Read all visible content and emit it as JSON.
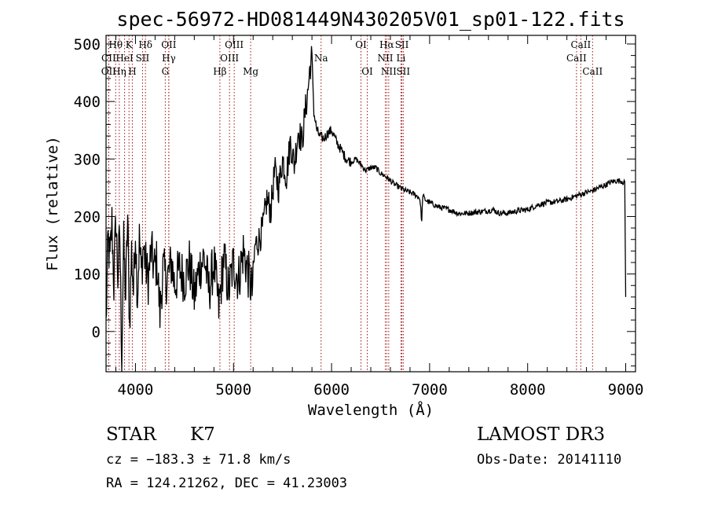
{
  "chart_data": {
    "type": "line",
    "title": "spec-56972-HD081449N430205V01_sp01-122.fits",
    "xlabel": "Wavelength (Å)",
    "ylabel": "Flux (relative)",
    "xlim": [
      3700,
      9100
    ],
    "ylim": [
      -70,
      515
    ],
    "xticks": [
      4000,
      5000,
      6000,
      7000,
      8000,
      9000
    ],
    "yticks": [
      0,
      100,
      200,
      300,
      400,
      500
    ],
    "xtick_labels": [
      "4000",
      "5000",
      "6000",
      "7000",
      "8000",
      "9000"
    ],
    "ytick_labels": [
      "0",
      "100",
      "200",
      "300",
      "400",
      "500"
    ],
    "x_minor_step": 200,
    "y_minor_step": 20,
    "series": [
      {
        "name": "spectrum",
        "x": [
          3700,
          3720,
          3740,
          3760,
          3780,
          3800,
          3820,
          3840,
          3860,
          3880,
          3900,
          3920,
          3940,
          3960,
          3980,
          4000,
          4020,
          4040,
          4060,
          4080,
          4100,
          4130,
          4160,
          4190,
          4220,
          4250,
          4280,
          4310,
          4340,
          4370,
          4400,
          4450,
          4500,
          4550,
          4600,
          4650,
          4700,
          4750,
          4800,
          4850,
          4900,
          4950,
          5000,
          5050,
          5100,
          5150,
          5190,
          5220,
          5260,
          5300,
          5340,
          5380,
          5420,
          5460,
          5500,
          5540,
          5580,
          5620,
          5660,
          5700,
          5730,
          5760,
          5780,
          5800,
          5820,
          5850,
          5880,
          5920,
          5960,
          6000,
          6050,
          6100,
          6150,
          6200,
          6250,
          6300,
          6350,
          6400,
          6450,
          6500,
          6550,
          6600,
          6650,
          6700,
          6750,
          6800,
          6850,
          6900,
          6920,
          6930,
          6950,
          7000,
          7100,
          7200,
          7300,
          7400,
          7500,
          7600,
          7650,
          7700,
          7800,
          7900,
          8000,
          8100,
          8200,
          8300,
          8400,
          8500,
          8600,
          8650,
          8700,
          8750,
          8800,
          8850,
          8900,
          8950,
          8990,
          9000
        ],
        "y": [
          10,
          160,
          120,
          190,
          80,
          200,
          95,
          170,
          -40,
          150,
          60,
          200,
          10,
          140,
          70,
          180,
          60,
          160,
          100,
          150,
          120,
          90,
          140,
          110,
          120,
          30,
          110,
          90,
          100,
          120,
          80,
          110,
          90,
          120,
          60,
          110,
          130,
          70,
          120,
          40,
          130,
          70,
          120,
          90,
          140,
          100,
          70,
          150,
          160,
          180,
          230,
          210,
          280,
          250,
          300,
          270,
          330,
          290,
          350,
          330,
          380,
          420,
          460,
          480,
          380,
          350,
          340,
          335,
          345,
          350,
          330,
          315,
          300,
          295,
          300,
          290,
          280,
          285,
          285,
          275,
          270,
          262,
          255,
          250,
          245,
          242,
          238,
          232,
          190,
          238,
          230,
          224,
          216,
          212,
          205,
          206,
          208,
          210,
          212,
          206,
          206,
          210,
          212,
          220,
          224,
          226,
          230,
          236,
          242,
          244,
          248,
          252,
          255,
          260,
          262,
          262,
          258,
          60
        ]
      }
    ],
    "annotations": [
      {
        "label": "Hθ",
        "x": 3798,
        "row": 1
      },
      {
        "label": "K",
        "x": 3934,
        "row": 1
      },
      {
        "label": "Hδ",
        "x": 4102,
        "row": 1
      },
      {
        "label": "OII",
        "x": 4340,
        "row": 1
      },
      {
        "label": "OIII",
        "x": 5007,
        "row": 1
      },
      {
        "label": "OI",
        "x": 6300,
        "row": 1
      },
      {
        "label": "Hα",
        "x": 6563,
        "row": 1
      },
      {
        "label": "SII",
        "x": 6717,
        "row": 1
      },
      {
        "label": "CaII",
        "x": 8542,
        "row": 1
      },
      {
        "label": "CII",
        "x": 3727,
        "row": 2
      },
      {
        "label": "HeI",
        "x": 3889,
        "row": 2
      },
      {
        "label": "SII",
        "x": 4072,
        "row": 2
      },
      {
        "label": "Hγ",
        "x": 4340,
        "row": 2
      },
      {
        "label": "OIII",
        "x": 4959,
        "row": 2
      },
      {
        "label": "Na",
        "x": 5893,
        "row": 2
      },
      {
        "label": "NII",
        "x": 6548,
        "row": 2
      },
      {
        "label": "Li",
        "x": 6708,
        "row": 2
      },
      {
        "label": "CaII",
        "x": 8498,
        "row": 2
      },
      {
        "label": "OII",
        "x": 3727,
        "row": 3
      },
      {
        "label": "Hη",
        "x": 3835,
        "row": 3
      },
      {
        "label": "H",
        "x": 3968,
        "row": 3
      },
      {
        "label": "G",
        "x": 4304,
        "row": 3
      },
      {
        "label": "Hβ",
        "x": 4861,
        "row": 3
      },
      {
        "label": "Mg",
        "x": 5175,
        "row": 3
      },
      {
        "label": "OI",
        "x": 6364,
        "row": 3
      },
      {
        "label": "NII",
        "x": 6583,
        "row": 3
      },
      {
        "label": "SII",
        "x": 6731,
        "row": 3
      },
      {
        "label": "CaII",
        "x": 8662,
        "row": 3
      }
    ],
    "line_marker_color": "#a01010",
    "line_color": "#000000"
  },
  "info": {
    "object_type": "STAR",
    "subclass": "K7",
    "survey": "LAMOST DR3",
    "redshift": "cz = −183.3 ± 71.8 km/s",
    "obs_date": "Obs-Date: 20141110",
    "coords": "RA = 124.21262, DEC =  41.23003"
  }
}
